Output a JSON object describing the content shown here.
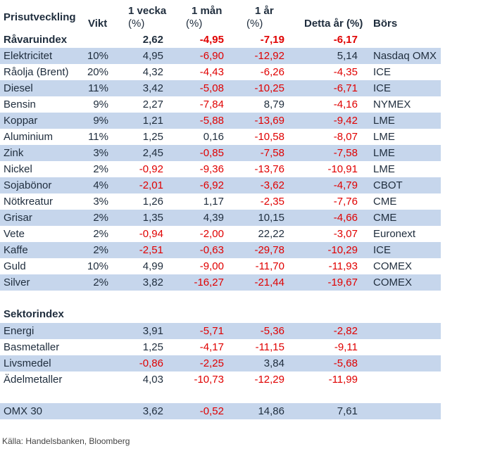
{
  "header": {
    "prisutveckling": "Prisutveckling",
    "vikt": "Vikt",
    "vecka_1": "1 vecka",
    "vecka_2": "(%)",
    "man_1": "1 mån",
    "man_2": "(%)",
    "ar_1": "1 år",
    "ar_2": "(%)",
    "detta_ar": "Detta år (%)",
    "bors": "Börs"
  },
  "ravaruindex": {
    "name": "Råvaruindex",
    "w": "2,62",
    "m": "-4,95",
    "y": "-7,19",
    "d": "-6,17"
  },
  "commodities": [
    {
      "name": "Elektricitet",
      "vikt": "10%",
      "w": "4,95",
      "m": "-6,90",
      "y": "-12,92",
      "d": "5,14",
      "b": "Nasdaq OMX"
    },
    {
      "name": "Råolja (Brent)",
      "vikt": "20%",
      "w": "4,32",
      "m": "-4,43",
      "y": "-6,26",
      "d": "-4,35",
      "b": "ICE"
    },
    {
      "name": "Diesel",
      "vikt": "11%",
      "w": "3,42",
      "m": "-5,08",
      "y": "-10,25",
      "d": "-6,71",
      "b": "ICE"
    },
    {
      "name": "Bensin",
      "vikt": "9%",
      "w": "2,27",
      "m": "-7,84",
      "y": "8,79",
      "d": "-4,16",
      "b": "NYMEX"
    },
    {
      "name": "Koppar",
      "vikt": "9%",
      "w": "1,21",
      "m": "-5,88",
      "y": "-13,69",
      "d": "-9,42",
      "b": "LME"
    },
    {
      "name": "Aluminium",
      "vikt": "11%",
      "w": "1,25",
      "m": "0,16",
      "y": "-10,58",
      "d": "-8,07",
      "b": "LME"
    },
    {
      "name": "Zink",
      "vikt": "3%",
      "w": "2,45",
      "m": "-0,85",
      "y": "-7,58",
      "d": "-7,58",
      "b": "LME"
    },
    {
      "name": "Nickel",
      "vikt": "2%",
      "w": "-0,92",
      "m": "-9,36",
      "y": "-13,76",
      "d": "-10,91",
      "b": "LME"
    },
    {
      "name": "Sojabönor",
      "vikt": "4%",
      "w": "-2,01",
      "m": "-6,92",
      "y": "-3,62",
      "d": "-4,79",
      "b": "CBOT"
    },
    {
      "name": "Nötkreatur",
      "vikt": "3%",
      "w": "1,26",
      "m": "1,17",
      "y": "-2,35",
      "d": "-7,76",
      "b": "CME"
    },
    {
      "name": "Grisar",
      "vikt": "2%",
      "w": "1,35",
      "m": "4,39",
      "y": "10,15",
      "d": "-4,66",
      "b": "CME"
    },
    {
      "name": "Vete",
      "vikt": "2%",
      "w": "-0,94",
      "m": "-2,00",
      "y": "22,22",
      "d": "-3,07",
      "b": "Euronext"
    },
    {
      "name": "Kaffe",
      "vikt": "2%",
      "w": "-2,51",
      "m": "-0,63",
      "y": "-29,78",
      "d": "-10,29",
      "b": "ICE"
    },
    {
      "name": "Guld",
      "vikt": "10%",
      "w": "4,99",
      "m": "-9,00",
      "y": "-11,70",
      "d": "-11,93",
      "b": "COMEX"
    },
    {
      "name": "Silver",
      "vikt": "2%",
      "w": "3,82",
      "m": "-16,27",
      "y": "-21,44",
      "d": "-19,67",
      "b": "COMEX"
    }
  ],
  "sektorindex_title": "Sektorindex",
  "sectors": [
    {
      "name": "Energi",
      "w": "3,91",
      "m": "-5,71",
      "y": "-5,36",
      "d": "-2,82"
    },
    {
      "name": "Basmetaller",
      "w": "1,25",
      "m": "-4,17",
      "y": "-11,15",
      "d": "-9,11"
    },
    {
      "name": "Livsmedel",
      "w": "-0,86",
      "m": "-2,25",
      "y": "3,84",
      "d": "-5,68"
    },
    {
      "name": "Ädelmetaller",
      "w": "4,03",
      "m": "-10,73",
      "y": "-12,29",
      "d": "-11,99"
    }
  ],
  "omx": {
    "name": "OMX 30",
    "w": "3,62",
    "m": "-0,52",
    "y": "14,86",
    "d": "7,61"
  },
  "source": "Källa: Handelsbanken, Bloomberg",
  "colors": {
    "row_shade": "#c6d6ec",
    "negative": "#e00000",
    "text": "#1f2d3d"
  }
}
